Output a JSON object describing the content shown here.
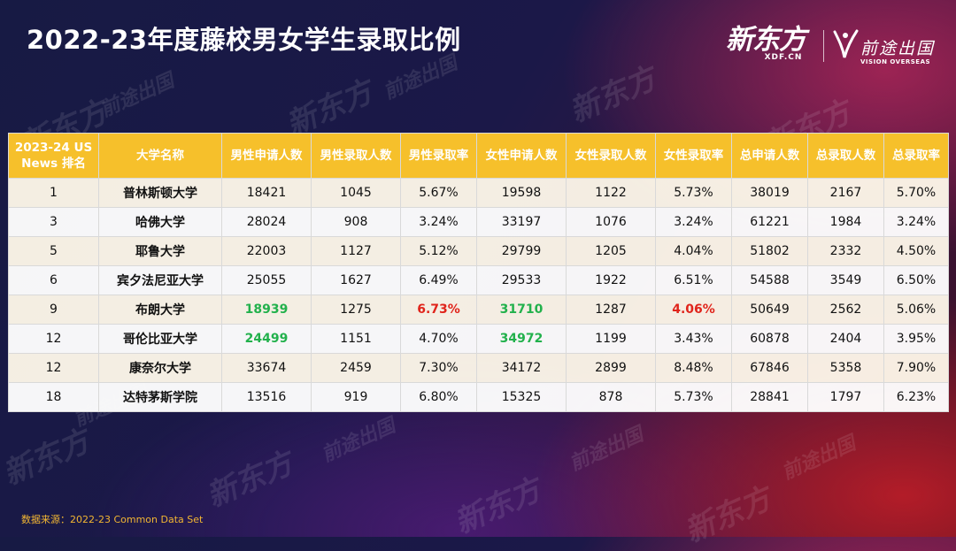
{
  "title": "2022-23年度藤校男女学生录取比例",
  "logos": {
    "xdf_main": "新东方",
    "xdf_sub": "XDF.CN",
    "vision_cn": "前途出国",
    "vision_en": "VISION OVERSEAS"
  },
  "source": "数据来源：2022-23 Common Data Set",
  "colors": {
    "header_bg": "#f6c02b",
    "highlight_green": "#22b14c",
    "highlight_red": "#e0241b"
  },
  "chart_data": {
    "type": "table",
    "columns": [
      "2023-24 US News 排名",
      "大学名称",
      "男性申请人数",
      "男性录取人数",
      "男性录取率",
      "女性申请人数",
      "女性录取人数",
      "女性录取率",
      "总申请人数",
      "总录取人数",
      "总录取率"
    ],
    "rows": [
      [
        "1",
        "普林斯顿大学",
        "18421",
        "1045",
        "5.67%",
        "19598",
        "1122",
        "5.73%",
        "38019",
        "2167",
        "5.70%"
      ],
      [
        "3",
        "哈佛大学",
        "28024",
        "908",
        "3.24%",
        "33197",
        "1076",
        "3.24%",
        "61221",
        "1984",
        "3.24%"
      ],
      [
        "5",
        "耶鲁大学",
        "22003",
        "1127",
        "5.12%",
        "29799",
        "1205",
        "4.04%",
        "51802",
        "2332",
        "4.50%"
      ],
      [
        "6",
        "宾夕法尼亚大学",
        "25055",
        "1627",
        "6.49%",
        "29533",
        "1922",
        "6.51%",
        "54588",
        "3549",
        "6.50%"
      ],
      [
        "9",
        "布朗大学",
        "18939",
        "1275",
        "6.73%",
        "31710",
        "1287",
        "4.06%",
        "50649",
        "2562",
        "5.06%"
      ],
      [
        "12",
        "哥伦比亚大学",
        "24499",
        "1151",
        "4.70%",
        "34972",
        "1199",
        "3.43%",
        "60878",
        "2404",
        "3.95%"
      ],
      [
        "12",
        "康奈尔大学",
        "33674",
        "2459",
        "7.30%",
        "34172",
        "2899",
        "8.48%",
        "67846",
        "5358",
        "7.90%"
      ],
      [
        "18",
        "达特茅斯学院",
        "13516",
        "919",
        "6.80%",
        "15325",
        "878",
        "5.73%",
        "28841",
        "1797",
        "6.23%"
      ]
    ],
    "highlights": [
      {
        "row": 4,
        "col": 2,
        "color": "green"
      },
      {
        "row": 4,
        "col": 4,
        "color": "red"
      },
      {
        "row": 4,
        "col": 5,
        "color": "green"
      },
      {
        "row": 4,
        "col": 7,
        "color": "red"
      },
      {
        "row": 5,
        "col": 2,
        "color": "green"
      },
      {
        "row": 5,
        "col": 5,
        "color": "green"
      }
    ]
  }
}
